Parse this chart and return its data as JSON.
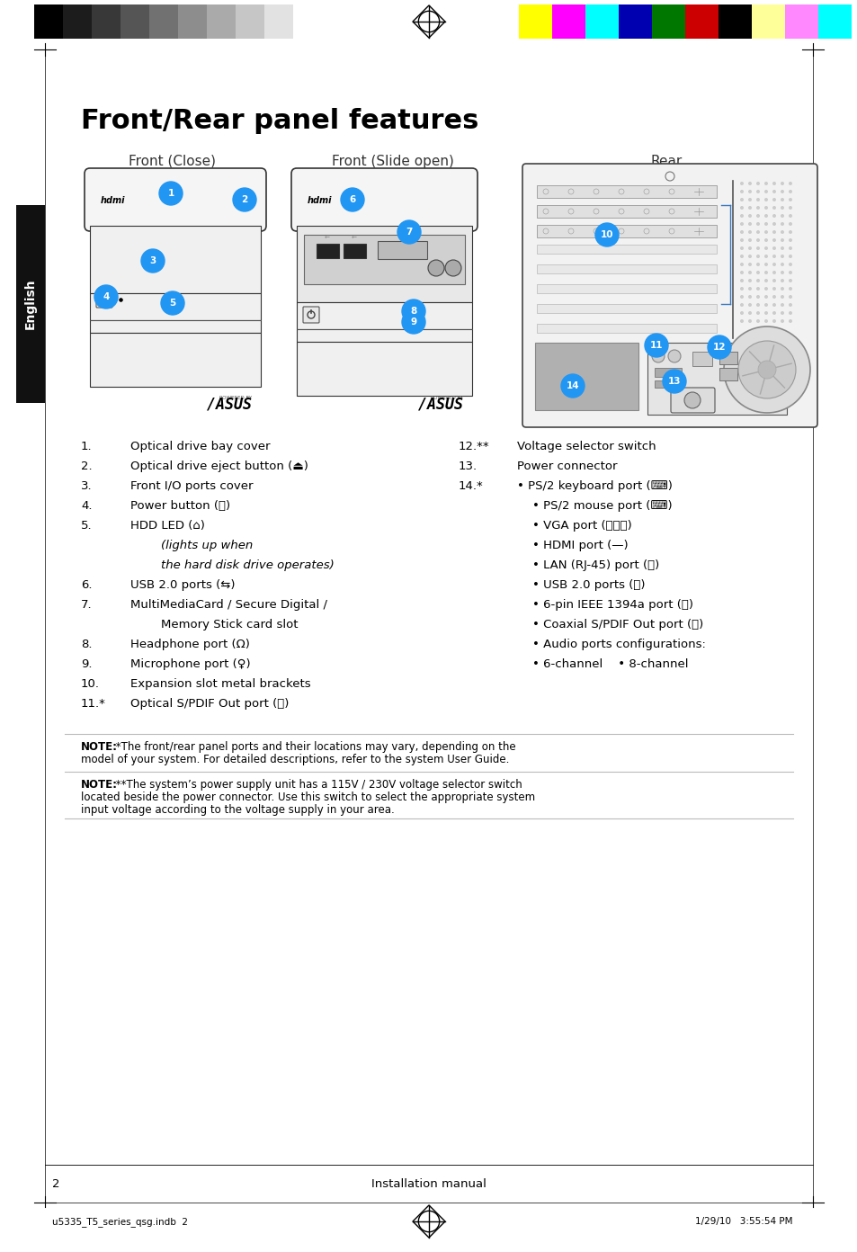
{
  "title": "Front/Rear panel features",
  "subtitle_front_close": "Front (Close)",
  "subtitle_front_open": "Front (Slide open)",
  "subtitle_rear": "Rear",
  "page_number": "2",
  "page_label": "Installation manual",
  "footer_left": "u5335_T5_series_qsg.indb  2",
  "footer_right": "1/29/10   3:55:54 PM",
  "english_tab": "English",
  "bg_color": "#ffffff",
  "bubble_color": "#2196F3",
  "bubble_text_color": "#ffffff",
  "note1_bold": "NOTE:",
  "note1_text": " *The front/rear panel ports and their locations may vary, depending on the model of your system. For detailed descriptions, refer to the system User Guide.",
  "note2_bold": "NOTE:",
  "note2_text": " **The system’s power supply unit has a 115V / 230V voltage selector switch located beside the power connector. Use this switch to select the appropriate system input voltage according to the voltage supply in your area.",
  "bw_bars": [
    "#000000",
    "#1c1c1c",
    "#383838",
    "#555555",
    "#717171",
    "#8d8d8d",
    "#aaaaaa",
    "#c6c6c6",
    "#e2e2e2",
    "#ffffff"
  ],
  "color_bars": [
    "#ffff00",
    "#ff00ff",
    "#00ffff",
    "#0000b0",
    "#007800",
    "#cc0000",
    "#000000",
    "#ffff9a",
    "#ff88ff",
    "#00ffff"
  ]
}
